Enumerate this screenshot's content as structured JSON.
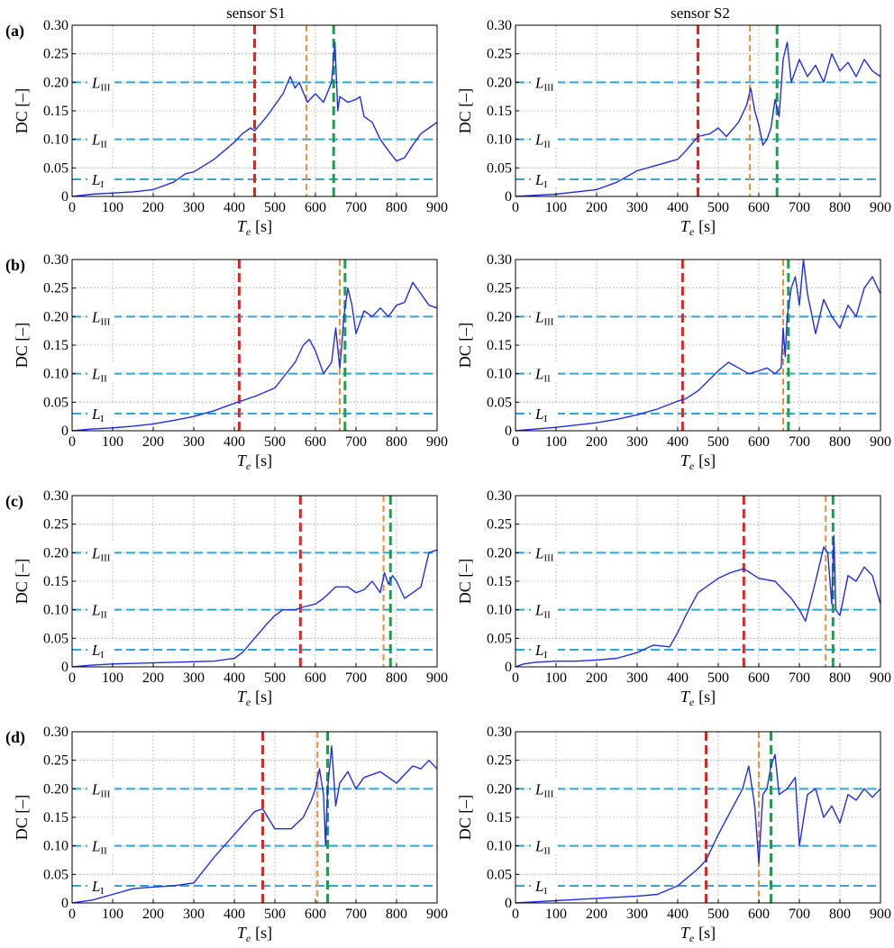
{
  "column_titles": [
    "sensor S1",
    "sensor S2"
  ],
  "chart_data": [
    {
      "type": "line",
      "row_label": "(a)",
      "column": "sensor S1",
      "xlabel_main": "T",
      "xlabel_sub": "e",
      "xlabel_unit": "[s]",
      "ylabel": "DC [–]",
      "xlim": [
        0,
        900
      ],
      "ylim": [
        0,
        0.3
      ],
      "xticks": [
        0,
        100,
        200,
        300,
        400,
        500,
        600,
        700,
        800,
        900
      ],
      "yticks": [
        "0",
        "0.05",
        "0.10",
        "0.15",
        "0.20",
        "0.25",
        "0.30"
      ],
      "grid": true,
      "thresholds": [
        {
          "name": "L",
          "sub": "I",
          "value": 0.03
        },
        {
          "name": "L",
          "sub": "II",
          "value": 0.1
        },
        {
          "name": "L",
          "sub": "III",
          "value": 0.2
        }
      ],
      "vlines": [
        {
          "x": 450,
          "color": "red"
        },
        {
          "x": 578,
          "color": "orange"
        },
        {
          "x": 645,
          "color": "green"
        }
      ],
      "series": [
        {
          "x": [
            0,
            50,
            100,
            150,
            200,
            250,
            280,
            300,
            350,
            400,
            420,
            440,
            450,
            480,
            500,
            520,
            538,
            550,
            560,
            580,
            600,
            620,
            640,
            648,
            655,
            660,
            680,
            700,
            710,
            720,
            740,
            760,
            780,
            800,
            820,
            840,
            860,
            880,
            900
          ],
          "y": [
            0,
            0.004,
            0.006,
            0.008,
            0.012,
            0.025,
            0.04,
            0.043,
            0.065,
            0.095,
            0.11,
            0.12,
            0.115,
            0.14,
            0.16,
            0.18,
            0.21,
            0.19,
            0.2,
            0.165,
            0.18,
            0.165,
            0.2,
            0.27,
            0.15,
            0.175,
            0.165,
            0.17,
            0.175,
            0.14,
            0.13,
            0.1,
            0.08,
            0.062,
            0.068,
            0.09,
            0.11,
            0.12,
            0.13
          ]
        }
      ]
    },
    {
      "type": "line",
      "row_label": "",
      "column": "sensor S2",
      "xlabel_main": "T",
      "xlabel_sub": "e",
      "xlabel_unit": "[s]",
      "ylabel": "DC [–]",
      "xlim": [
        0,
        900
      ],
      "ylim": [
        0,
        0.3
      ],
      "xticks": [
        0,
        100,
        200,
        300,
        400,
        500,
        600,
        700,
        800,
        900
      ],
      "yticks": [
        "0",
        "0.05",
        "0.10",
        "0.15",
        "0.20",
        "0.25",
        "0.30"
      ],
      "grid": true,
      "thresholds": [
        {
          "name": "L",
          "sub": "I",
          "value": 0.03
        },
        {
          "name": "L",
          "sub": "II",
          "value": 0.1
        },
        {
          "name": "L",
          "sub": "III",
          "value": 0.2
        }
      ],
      "vlines": [
        {
          "x": 450,
          "color": "red"
        },
        {
          "x": 578,
          "color": "orange"
        },
        {
          "x": 645,
          "color": "green"
        }
      ],
      "series": [
        {
          "x": [
            0,
            50,
            100,
            150,
            200,
            250,
            300,
            350,
            400,
            420,
            450,
            480,
            500,
            520,
            550,
            570,
            580,
            590,
            600,
            610,
            620,
            630,
            640,
            650,
            660,
            670,
            680,
            700,
            720,
            740,
            760,
            780,
            800,
            820,
            840,
            860,
            880,
            900
          ],
          "y": [
            0,
            0.002,
            0.004,
            0.008,
            0.012,
            0.025,
            0.045,
            0.055,
            0.065,
            0.08,
            0.105,
            0.11,
            0.12,
            0.105,
            0.13,
            0.16,
            0.19,
            0.15,
            0.125,
            0.09,
            0.1,
            0.12,
            0.17,
            0.14,
            0.24,
            0.27,
            0.2,
            0.24,
            0.21,
            0.23,
            0.2,
            0.25,
            0.22,
            0.235,
            0.21,
            0.24,
            0.22,
            0.21
          ]
        }
      ]
    },
    {
      "type": "line",
      "row_label": "(b)",
      "column": "sensor S1",
      "xlabel_main": "T",
      "xlabel_sub": "e",
      "xlabel_unit": "[s]",
      "ylabel": "DC [–]",
      "xlim": [
        0,
        900
      ],
      "ylim": [
        0,
        0.3
      ],
      "xticks": [
        0,
        100,
        200,
        300,
        400,
        500,
        600,
        700,
        800,
        900
      ],
      "yticks": [
        "0",
        "0.05",
        "0.10",
        "0.15",
        "0.20",
        "0.25",
        "0.30"
      ],
      "grid": true,
      "thresholds": [
        {
          "name": "L",
          "sub": "I",
          "value": 0.03
        },
        {
          "name": "L",
          "sub": "II",
          "value": 0.1
        },
        {
          "name": "L",
          "sub": "III",
          "value": 0.2
        }
      ],
      "vlines": [
        {
          "x": 412,
          "color": "red"
        },
        {
          "x": 660,
          "color": "orange"
        },
        {
          "x": 673,
          "color": "green"
        }
      ],
      "series": [
        {
          "x": [
            0,
            50,
            100,
            150,
            200,
            250,
            300,
            350,
            400,
            450,
            500,
            550,
            570,
            585,
            600,
            620,
            640,
            650,
            660,
            665,
            670,
            680,
            690,
            700,
            720,
            740,
            760,
            780,
            800,
            820,
            840,
            860,
            880,
            900
          ],
          "y": [
            0,
            0.003,
            0.005,
            0.008,
            0.012,
            0.018,
            0.025,
            0.035,
            0.048,
            0.06,
            0.075,
            0.12,
            0.15,
            0.16,
            0.14,
            0.1,
            0.12,
            0.18,
            0.11,
            0.15,
            0.2,
            0.25,
            0.22,
            0.17,
            0.21,
            0.2,
            0.215,
            0.2,
            0.22,
            0.225,
            0.26,
            0.24,
            0.22,
            0.215
          ]
        }
      ]
    },
    {
      "type": "line",
      "row_label": "",
      "column": "sensor S2",
      "xlabel_main": "T",
      "xlabel_sub": "e",
      "xlabel_unit": "[s]",
      "ylabel": "DC [–]",
      "xlim": [
        0,
        900
      ],
      "ylim": [
        0,
        0.3
      ],
      "xticks": [
        0,
        100,
        200,
        300,
        400,
        500,
        600,
        700,
        800,
        900
      ],
      "yticks": [
        "0",
        "0.05",
        "0.10",
        "0.15",
        "0.20",
        "0.25",
        "0.30"
      ],
      "grid": true,
      "thresholds": [
        {
          "name": "L",
          "sub": "I",
          "value": 0.03
        },
        {
          "name": "L",
          "sub": "II",
          "value": 0.1
        },
        {
          "name": "L",
          "sub": "III",
          "value": 0.2
        }
      ],
      "vlines": [
        {
          "x": 412,
          "color": "red"
        },
        {
          "x": 660,
          "color": "orange"
        },
        {
          "x": 673,
          "color": "green"
        }
      ],
      "series": [
        {
          "x": [
            0,
            50,
            100,
            150,
            200,
            250,
            300,
            350,
            400,
            420,
            450,
            500,
            525,
            550,
            575,
            600,
            620,
            640,
            655,
            660,
            665,
            670,
            680,
            690,
            700,
            710,
            720,
            740,
            760,
            780,
            800,
            820,
            840,
            860,
            880,
            900
          ],
          "y": [
            0,
            0.003,
            0.006,
            0.01,
            0.014,
            0.02,
            0.028,
            0.038,
            0.052,
            0.056,
            0.07,
            0.105,
            0.12,
            0.11,
            0.1,
            0.105,
            0.11,
            0.1,
            0.11,
            0.18,
            0.13,
            0.2,
            0.25,
            0.27,
            0.22,
            0.3,
            0.24,
            0.17,
            0.23,
            0.2,
            0.18,
            0.22,
            0.2,
            0.25,
            0.27,
            0.24
          ]
        }
      ]
    },
    {
      "type": "line",
      "row_label": "(c)",
      "column": "sensor S1",
      "xlabel_main": "T",
      "xlabel_sub": "e",
      "xlabel_unit": "[s]",
      "ylabel": "DC [–]",
      "xlim": [
        0,
        900
      ],
      "ylim": [
        0,
        0.3
      ],
      "xticks": [
        0,
        100,
        200,
        300,
        400,
        500,
        600,
        700,
        800,
        900
      ],
      "yticks": [
        "0",
        "0.05",
        "0.10",
        "0.15",
        "0.20",
        "0.25",
        "0.30"
      ],
      "grid": true,
      "thresholds": [
        {
          "name": "L",
          "sub": "I",
          "value": 0.03
        },
        {
          "name": "L",
          "sub": "II",
          "value": 0.1
        },
        {
          "name": "L",
          "sub": "III",
          "value": 0.2
        }
      ],
      "vlines": [
        {
          "x": 563,
          "color": "red"
        },
        {
          "x": 768,
          "color": "orange"
        },
        {
          "x": 785,
          "color": "green"
        }
      ],
      "series": [
        {
          "x": [
            0,
            50,
            100,
            150,
            200,
            250,
            300,
            350,
            400,
            420,
            450,
            480,
            500,
            520,
            550,
            570,
            600,
            620,
            650,
            680,
            700,
            720,
            740,
            760,
            770,
            780,
            790,
            800,
            820,
            840,
            860,
            880,
            900
          ],
          "y": [
            0,
            0.003,
            0.005,
            0.006,
            0.007,
            0.008,
            0.009,
            0.01,
            0.015,
            0.025,
            0.05,
            0.075,
            0.09,
            0.1,
            0.1,
            0.105,
            0.11,
            0.12,
            0.14,
            0.14,
            0.13,
            0.135,
            0.15,
            0.13,
            0.165,
            0.145,
            0.16,
            0.15,
            0.12,
            0.13,
            0.14,
            0.2,
            0.205
          ]
        }
      ]
    },
    {
      "type": "line",
      "row_label": "",
      "column": "sensor S2",
      "xlabel_main": "T",
      "xlabel_sub": "e",
      "xlabel_unit": "[s]",
      "ylabel": "DC [–]",
      "xlim": [
        0,
        900
      ],
      "ylim": [
        0,
        0.3
      ],
      "xticks": [
        0,
        100,
        200,
        300,
        400,
        500,
        600,
        700,
        800,
        900
      ],
      "yticks": [
        "0",
        "0.05",
        "0.10",
        "0.15",
        "0.20",
        "0.25",
        "0.30"
      ],
      "grid": true,
      "thresholds": [
        {
          "name": "L",
          "sub": "I",
          "value": 0.03
        },
        {
          "name": "L",
          "sub": "II",
          "value": 0.1
        },
        {
          "name": "L",
          "sub": "III",
          "value": 0.2
        }
      ],
      "vlines": [
        {
          "x": 563,
          "color": "red"
        },
        {
          "x": 765,
          "color": "orange"
        },
        {
          "x": 783,
          "color": "green"
        }
      ],
      "series": [
        {
          "x": [
            0,
            20,
            50,
            100,
            150,
            200,
            250,
            300,
            340,
            380,
            400,
            420,
            450,
            500,
            530,
            563,
            600,
            640,
            680,
            700,
            715,
            740,
            760,
            770,
            780,
            785,
            790,
            800,
            820,
            840,
            860,
            880,
            900
          ],
          "y": [
            0,
            0.005,
            0.008,
            0.01,
            0.01,
            0.012,
            0.015,
            0.025,
            0.038,
            0.035,
            0.06,
            0.09,
            0.13,
            0.155,
            0.165,
            0.172,
            0.155,
            0.15,
            0.12,
            0.1,
            0.08,
            0.15,
            0.21,
            0.2,
            0.11,
            0.23,
            0.1,
            0.09,
            0.16,
            0.15,
            0.175,
            0.16,
            0.11
          ]
        }
      ]
    },
    {
      "type": "line",
      "row_label": "(d)",
      "column": "sensor S1",
      "xlabel_main": "T",
      "xlabel_sub": "e",
      "xlabel_unit": "[s]",
      "ylabel": "DC [–]",
      "xlim": [
        0,
        900
      ],
      "ylim": [
        0,
        0.3
      ],
      "xticks": [
        0,
        100,
        200,
        300,
        400,
        500,
        600,
        700,
        800,
        900
      ],
      "yticks": [
        "0",
        "0.05",
        "0.10",
        "0.15",
        "0.20",
        "0.25",
        "0.30"
      ],
      "grid": true,
      "thresholds": [
        {
          "name": "L",
          "sub": "I",
          "value": 0.03
        },
        {
          "name": "L",
          "sub": "II",
          "value": 0.1
        },
        {
          "name": "L",
          "sub": "III",
          "value": 0.2
        }
      ],
      "vlines": [
        {
          "x": 470,
          "color": "red"
        },
        {
          "x": 605,
          "color": "orange"
        },
        {
          "x": 630,
          "color": "green"
        }
      ],
      "series": [
        {
          "x": [
            0,
            50,
            100,
            150,
            200,
            250,
            300,
            350,
            400,
            450,
            470,
            500,
            540,
            570,
            590,
            600,
            610,
            620,
            625,
            630,
            640,
            650,
            660,
            680,
            700,
            720,
            760,
            800,
            840,
            860,
            880,
            900
          ],
          "y": [
            0,
            0.005,
            0.015,
            0.025,
            0.028,
            0.03,
            0.035,
            0.08,
            0.12,
            0.16,
            0.165,
            0.13,
            0.13,
            0.15,
            0.18,
            0.2,
            0.235,
            0.19,
            0.1,
            0.2,
            0.275,
            0.17,
            0.21,
            0.23,
            0.2,
            0.22,
            0.23,
            0.21,
            0.24,
            0.235,
            0.25,
            0.235
          ]
        }
      ]
    },
    {
      "type": "line",
      "row_label": "",
      "column": "sensor S2",
      "xlabel_main": "T",
      "xlabel_sub": "e",
      "xlabel_unit": "[s]",
      "ylabel": "DC [–]",
      "xlim": [
        0,
        900
      ],
      "ylim": [
        0,
        0.3
      ],
      "xticks": [
        0,
        100,
        200,
        300,
        400,
        500,
        600,
        700,
        800,
        900
      ],
      "yticks": [
        "0",
        "0.05",
        "0.10",
        "0.15",
        "0.20",
        "0.25",
        "0.30"
      ],
      "grid": true,
      "thresholds": [
        {
          "name": "L",
          "sub": "I",
          "value": 0.03
        },
        {
          "name": "L",
          "sub": "II",
          "value": 0.1
        },
        {
          "name": "L",
          "sub": "III",
          "value": 0.2
        }
      ],
      "vlines": [
        {
          "x": 470,
          "color": "red"
        },
        {
          "x": 600,
          "color": "orange"
        },
        {
          "x": 630,
          "color": "green"
        }
      ],
      "series": [
        {
          "x": [
            0,
            50,
            100,
            150,
            200,
            250,
            300,
            350,
            400,
            450,
            470,
            500,
            530,
            560,
            575,
            590,
            600,
            610,
            620,
            630,
            640,
            650,
            670,
            690,
            700,
            720,
            740,
            760,
            780,
            800,
            820,
            840,
            860,
            880,
            900
          ],
          "y": [
            0,
            0.002,
            0.004,
            0.006,
            0.008,
            0.01,
            0.012,
            0.015,
            0.03,
            0.06,
            0.075,
            0.12,
            0.16,
            0.2,
            0.24,
            0.17,
            0.07,
            0.19,
            0.2,
            0.24,
            0.26,
            0.19,
            0.2,
            0.22,
            0.1,
            0.19,
            0.2,
            0.15,
            0.17,
            0.14,
            0.19,
            0.18,
            0.2,
            0.185,
            0.2
          ]
        }
      ]
    }
  ]
}
